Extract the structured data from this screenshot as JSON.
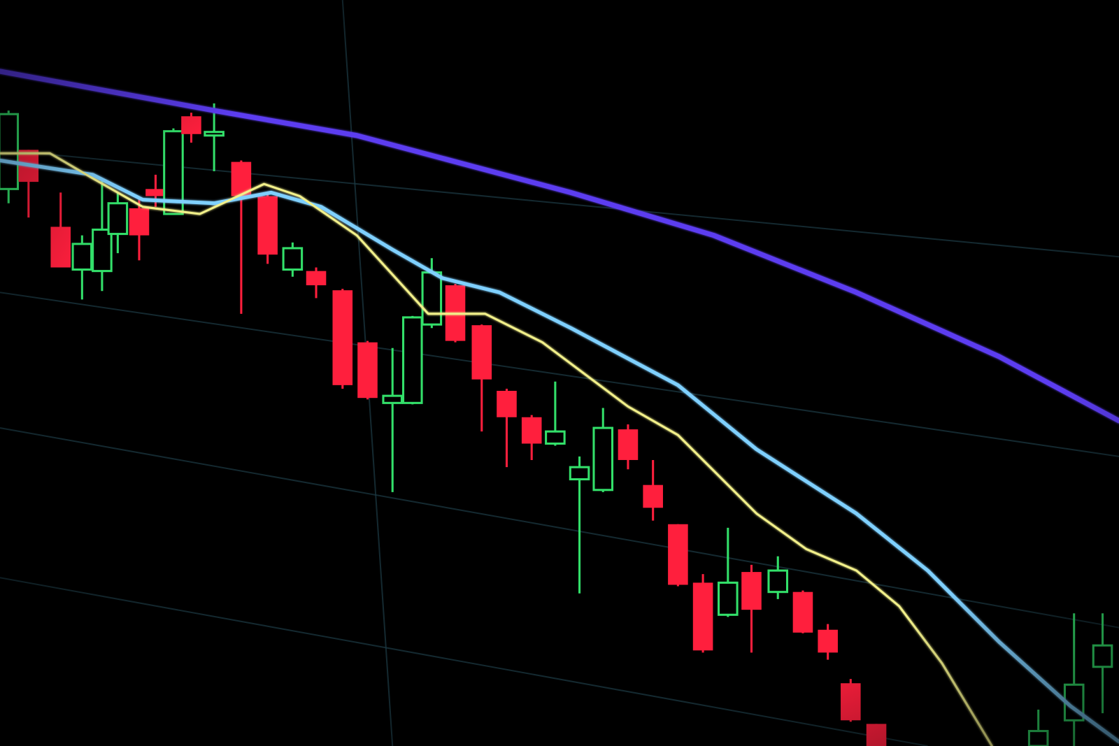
{
  "scene": {
    "subject": "candlestick-chart-photo",
    "colors": {
      "background": "#000000",
      "bullish": "#33e06a",
      "bearish": "#ff1f3d",
      "ma_long": "#5b3cf0",
      "ma_mid": "#7fd0ff",
      "ma_short": "#f2f08a",
      "grid": "#1c3a44"
    }
  }
}
